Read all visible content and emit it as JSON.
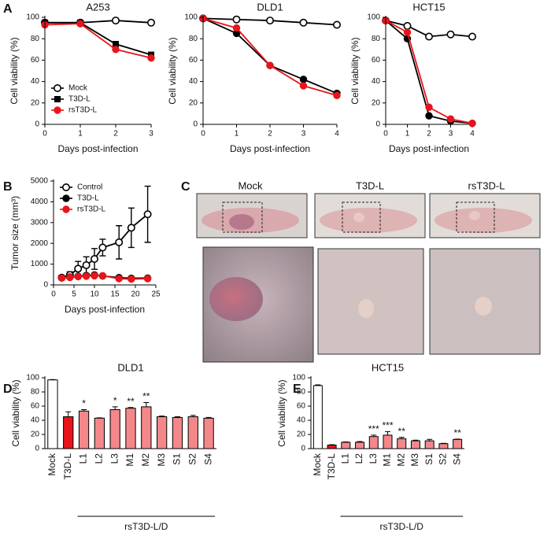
{
  "panel_labels": [
    "A",
    "B",
    "C",
    "D",
    "E"
  ],
  "photos": {
    "labels": [
      "Mock",
      "T3D-L",
      "rsT3D-L"
    ]
  },
  "chart_data": [
    {
      "type": "line",
      "title": "A253",
      "x_label": "Days post-infection",
      "y_label": "Cell viability (%)",
      "x": [
        0,
        1,
        2,
        3
      ],
      "xlim": [
        0,
        3
      ],
      "xticks": [
        0,
        1,
        2,
        3
      ],
      "ylim": [
        0,
        100
      ],
      "yticks": [
        0,
        20,
        40,
        60,
        80,
        100
      ],
      "legend": "lower left",
      "series": [
        {
          "name": "Mock",
          "color": "#000000",
          "marker": "open-circle",
          "values": [
            95,
            95,
            97,
            95
          ]
        },
        {
          "name": "T3D-L",
          "color": "#000000",
          "marker": "square",
          "values": [
            95,
            95,
            75,
            65
          ]
        },
        {
          "name": "rsT3D-L",
          "color": "#e8141b",
          "marker": "circle",
          "values": [
            93,
            94,
            70,
            62
          ]
        }
      ]
    },
    {
      "type": "line",
      "title": "DLD1",
      "x_label": "Days post-infection",
      "y_label": "Cell viability (%)",
      "x": [
        0,
        1,
        2,
        3,
        4
      ],
      "xlim": [
        0,
        4
      ],
      "xticks": [
        0,
        1,
        2,
        3,
        4
      ],
      "ylim": [
        0,
        100
      ],
      "yticks": [
        0,
        20,
        40,
        60,
        80,
        100
      ],
      "series": [
        {
          "color": "#000000",
          "marker": "open-circle",
          "values": [
            99,
            98,
            97,
            95,
            93
          ]
        },
        {
          "color": "#000000",
          "marker": "circle",
          "values": [
            99,
            85,
            55,
            42,
            29
          ]
        },
        {
          "color": "#e8141b",
          "marker": "circle",
          "values": [
            99,
            90,
            55,
            36,
            27
          ]
        }
      ]
    },
    {
      "type": "line",
      "title": "HCT15",
      "x_label": "Days post-infection",
      "y_label": "Cell viability (%)",
      "x": [
        0,
        1,
        2,
        3,
        4
      ],
      "xlim": [
        0,
        4
      ],
      "xticks": [
        0,
        1,
        2,
        3,
        4
      ],
      "ylim": [
        0,
        100
      ],
      "yticks": [
        0,
        20,
        40,
        60,
        80,
        100
      ],
      "series": [
        {
          "color": "#000000",
          "marker": "open-circle",
          "values": [
            97,
            92,
            82,
            84,
            82
          ]
        },
        {
          "color": "#000000",
          "marker": "circle",
          "values": [
            97,
            80,
            8,
            3,
            1
          ]
        },
        {
          "color": "#e8141b",
          "marker": "circle",
          "values": [
            97,
            86,
            16,
            5,
            1
          ]
        }
      ]
    },
    {
      "type": "line",
      "x_label": "Days post-infection",
      "y_label": "Tumor size (mm³)",
      "x": [
        2,
        4,
        6,
        8,
        10,
        12,
        16,
        19,
        23
      ],
      "xlim": [
        0,
        25
      ],
      "xticks": [
        0,
        5,
        10,
        15,
        20,
        25
      ],
      "ylim": [
        0,
        5000
      ],
      "yticks": [
        0,
        1000,
        2000,
        3000,
        4000,
        5000
      ],
      "legend": "upper left",
      "series": [
        {
          "name": "Control",
          "color": "#000000",
          "marker": "open-circle",
          "values": [
            350,
            480,
            780,
            950,
            1250,
            1800,
            2050,
            2750,
            3400
          ],
          "errors": [
            100,
            150,
            350,
            400,
            500,
            400,
            800,
            950,
            1350
          ]
        },
        {
          "name": "T3D-L",
          "color": "#000000",
          "marker": "circle",
          "values": [
            350,
            380,
            420,
            450,
            480,
            430,
            350,
            320,
            330
          ]
        },
        {
          "name": "rsT3D-L",
          "color": "#e8141b",
          "marker": "circle",
          "values": [
            330,
            360,
            400,
            420,
            440,
            440,
            300,
            280,
            300
          ]
        }
      ]
    },
    {
      "type": "bar",
      "title": "DLD1",
      "y_label": "Cell viability (%)",
      "group_label": "rsT3D-L/D",
      "categories": [
        "Mock",
        "T3D-L",
        "L1",
        "L2",
        "L3",
        "M1",
        "M2",
        "M3",
        "S1",
        "S2",
        "S4"
      ],
      "values": [
        97,
        45,
        53,
        43,
        55,
        57,
        59,
        45,
        44,
        45,
        43
      ],
      "errors": [
        0.5,
        7,
        2,
        0.5,
        4,
        1,
        6,
        1,
        1,
        2,
        1
      ],
      "significance": [
        null,
        null,
        "*",
        null,
        "*",
        "**",
        "**",
        null,
        null,
        null,
        null
      ],
      "colors": [
        "#ffffff",
        "#e8141b",
        "#f4878a",
        "#f4878a",
        "#f4878a",
        "#f4878a",
        "#f4878a",
        "#f4878a",
        "#f4878a",
        "#f4878a",
        "#f4878a"
      ],
      "ylim": [
        0,
        100
      ],
      "yticks": [
        0,
        20,
        40,
        60,
        80,
        100
      ]
    },
    {
      "type": "bar",
      "title": "HCT15",
      "y_label": "Cell viability (%)",
      "group_label": "rsT3D-L/D",
      "categories": [
        "Mock",
        "T3D-L",
        "L1",
        "L2",
        "L3",
        "M1",
        "M2",
        "M3",
        "S1",
        "S2",
        "S4"
      ],
      "values": [
        89,
        5,
        9,
        9,
        17,
        19,
        14,
        11,
        11,
        7,
        13
      ],
      "errors": [
        1,
        0.5,
        0.5,
        1,
        2,
        5,
        2,
        1,
        2,
        0.5,
        0.5
      ],
      "significance": [
        null,
        null,
        null,
        null,
        "***",
        "***",
        "**",
        null,
        null,
        null,
        "**"
      ],
      "colors": [
        "#ffffff",
        "#e8141b",
        "#f4878a",
        "#f4878a",
        "#f4878a",
        "#f4878a",
        "#f4878a",
        "#f4878a",
        "#f4878a",
        "#f4878a",
        "#f4878a"
      ],
      "ylim": [
        0,
        100
      ],
      "yticks": [
        0,
        20,
        40,
        60,
        80,
        100
      ]
    }
  ]
}
